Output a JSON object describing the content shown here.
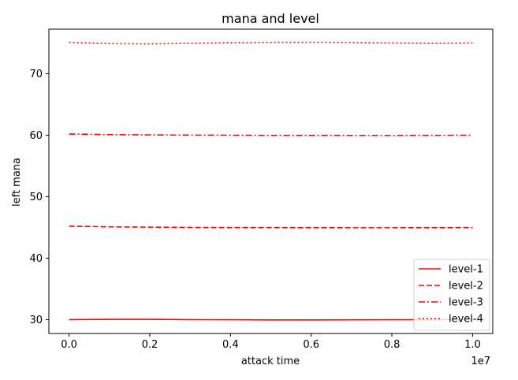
{
  "chart_data": {
    "type": "line",
    "title": "mana and level",
    "xlabel": "attack time",
    "ylabel": "left mana",
    "x_offset_label": "1e7",
    "xlim": [
      -0.05,
      1.05
    ],
    "ylim": [
      27.75,
      77.25
    ],
    "xticks": [
      0.0,
      0.2,
      0.4,
      0.6,
      0.8,
      1.0
    ],
    "xtick_labels": [
      "0.0",
      "0.2",
      "0.4",
      "0.6",
      "0.8",
      "1.0"
    ],
    "yticks": [
      30,
      40,
      50,
      60,
      70
    ],
    "ytick_labels": [
      "30",
      "40",
      "50",
      "60",
      "70"
    ],
    "grid": false,
    "legend_position": "lower-right",
    "color": "#ff0000",
    "series": [
      {
        "name": "level-1",
        "style": "solid",
        "x": [
          0.0,
          0.1,
          0.2,
          0.3,
          0.4,
          0.5,
          0.6,
          0.7,
          0.8,
          0.9,
          1.0
        ],
        "y": [
          30.0,
          30.05,
          30.05,
          30.0,
          29.98,
          29.96,
          29.96,
          29.97,
          29.98,
          30.0,
          30.0
        ]
      },
      {
        "name": "level-2",
        "style": "dashed",
        "x": [
          0.0,
          0.1,
          0.2,
          0.3,
          0.4,
          0.5,
          0.6,
          0.7,
          0.8,
          0.9,
          1.0
        ],
        "y": [
          45.2,
          45.1,
          45.05,
          45.0,
          44.98,
          44.97,
          44.96,
          44.95,
          44.95,
          44.96,
          44.97
        ]
      },
      {
        "name": "level-3",
        "style": "dashdot",
        "x": [
          0.0,
          0.1,
          0.2,
          0.3,
          0.4,
          0.5,
          0.6,
          0.7,
          0.8,
          0.9,
          1.0
        ],
        "y": [
          60.2,
          60.1,
          60.05,
          60.02,
          60.0,
          59.98,
          59.98,
          59.97,
          59.97,
          59.98,
          60.0
        ]
      },
      {
        "name": "level-4",
        "style": "dotted",
        "x": [
          0.0,
          0.1,
          0.2,
          0.3,
          0.4,
          0.5,
          0.6,
          0.7,
          0.8,
          0.9,
          1.0
        ],
        "y": [
          75.1,
          74.9,
          74.85,
          74.95,
          75.05,
          75.1,
          75.12,
          75.08,
          75.0,
          74.95,
          75.0
        ]
      }
    ]
  }
}
